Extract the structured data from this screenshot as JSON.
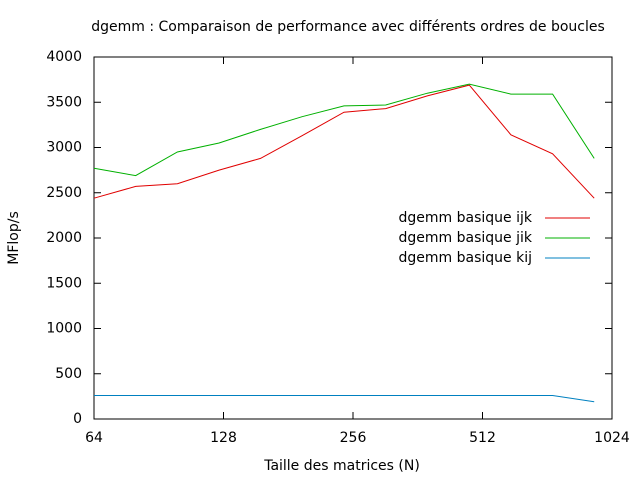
{
  "chart_data": {
    "type": "line",
    "title": "dgemm : Comparaison de performance avec différents ordres de boucles",
    "xlabel": "Taille des matrices (N)",
    "ylabel": "MFlop/s",
    "xscale": "log",
    "x": [
      64,
      80,
      100,
      125,
      156,
      195,
      244,
      305,
      381,
      477,
      596,
      745,
      931
    ],
    "series": [
      {
        "name": "dgemm basique ijk",
        "color": "#e00000",
        "values": [
          2440,
          2570,
          2600,
          2750,
          2880,
          3130,
          3390,
          3430,
          3570,
          3690,
          3140,
          2930,
          2440
        ]
      },
      {
        "name": "dgemm basique jik",
        "color": "#00b000",
        "values": [
          2770,
          2690,
          2950,
          3050,
          3200,
          3340,
          3460,
          3470,
          3600,
          3700,
          3590,
          3590,
          2880
        ]
      },
      {
        "name": "dgemm basique kij",
        "color": "#0080c0",
        "values": [
          260,
          260,
          260,
          260,
          260,
          260,
          260,
          260,
          260,
          260,
          260,
          260,
          190
        ]
      }
    ],
    "xlim": [
      64,
      1024
    ],
    "xticks": [
      64,
      128,
      256,
      512,
      1024
    ],
    "ylim": [
      0,
      4000
    ],
    "yticks": [
      0,
      500,
      1000,
      1500,
      2000,
      2500,
      3000,
      3500,
      4000
    ],
    "legend": "right"
  }
}
